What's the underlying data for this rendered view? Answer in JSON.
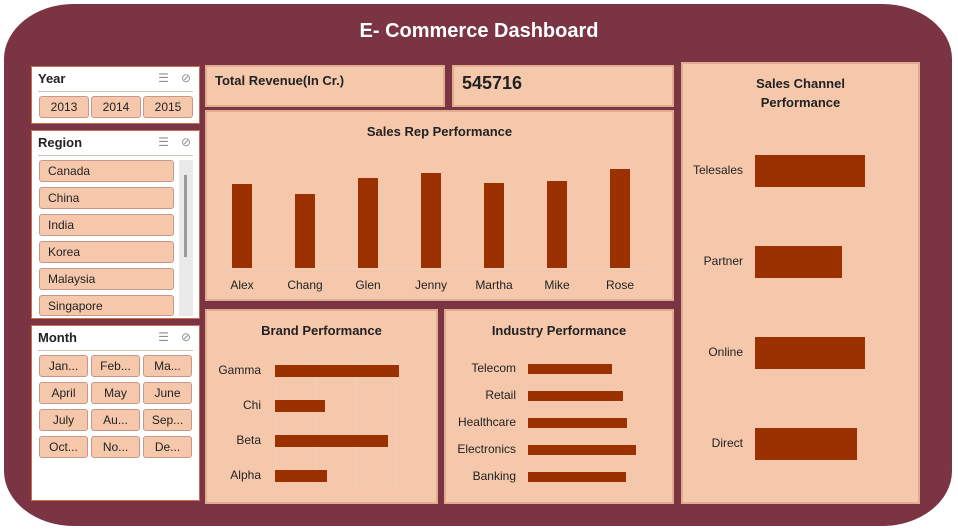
{
  "title": "E- Commerce Dashboard",
  "colors": {
    "frame": "#7b3444",
    "panel": "#f6c8ab",
    "bar": "#9b3000"
  },
  "slicers": {
    "year": {
      "label": "Year",
      "items": [
        "2013",
        "2014",
        "2015"
      ]
    },
    "region": {
      "label": "Region",
      "items": [
        "Canada",
        "China",
        "India",
        "Korea",
        "Malaysia",
        "Singapore"
      ]
    },
    "month": {
      "label": "Month",
      "items": [
        "Jan...",
        "Feb...",
        "Ma...",
        "April",
        "May",
        "June",
        "July",
        "Au...",
        "Sep...",
        "Oct...",
        "No...",
        "De..."
      ]
    },
    "icons": [
      "multi-select-icon",
      "clear-filter-icon"
    ]
  },
  "kpi": {
    "label": "Total Revenue(In Cr.)",
    "value": "545716"
  },
  "sales_rep": {
    "title": "Sales Rep Performance",
    "chart_data": {
      "type": "bar",
      "categories": [
        "Alex",
        "Chang",
        "Glen",
        "Jenny",
        "Martha",
        "Mike",
        "Rose"
      ],
      "values": [
        84,
        74,
        90,
        95,
        85,
        87,
        99
      ]
    }
  },
  "brand": {
    "title": "Brand Performance",
    "chart_data": {
      "type": "bar",
      "orientation": "horizontal",
      "categories": [
        "Gamma",
        "Chi",
        "Beta",
        "Alpha"
      ],
      "values": [
        124,
        50,
        113,
        52
      ]
    }
  },
  "industry": {
    "title": "Industry Performance",
    "chart_data": {
      "type": "bar",
      "orientation": "horizontal",
      "categories": [
        "Telecom",
        "Retail",
        "Healthcare",
        "Electronics",
        "Banking"
      ],
      "values": [
        84,
        95,
        99,
        108,
        98
      ]
    }
  },
  "channel": {
    "title_line1": "Sales Channel",
    "title_line2": "Performance",
    "chart_data": {
      "type": "bar",
      "orientation": "horizontal",
      "categories": [
        "Telesales",
        "Partner",
        "Online",
        "Direct"
      ],
      "values": [
        110,
        87,
        110,
        102
      ]
    }
  }
}
